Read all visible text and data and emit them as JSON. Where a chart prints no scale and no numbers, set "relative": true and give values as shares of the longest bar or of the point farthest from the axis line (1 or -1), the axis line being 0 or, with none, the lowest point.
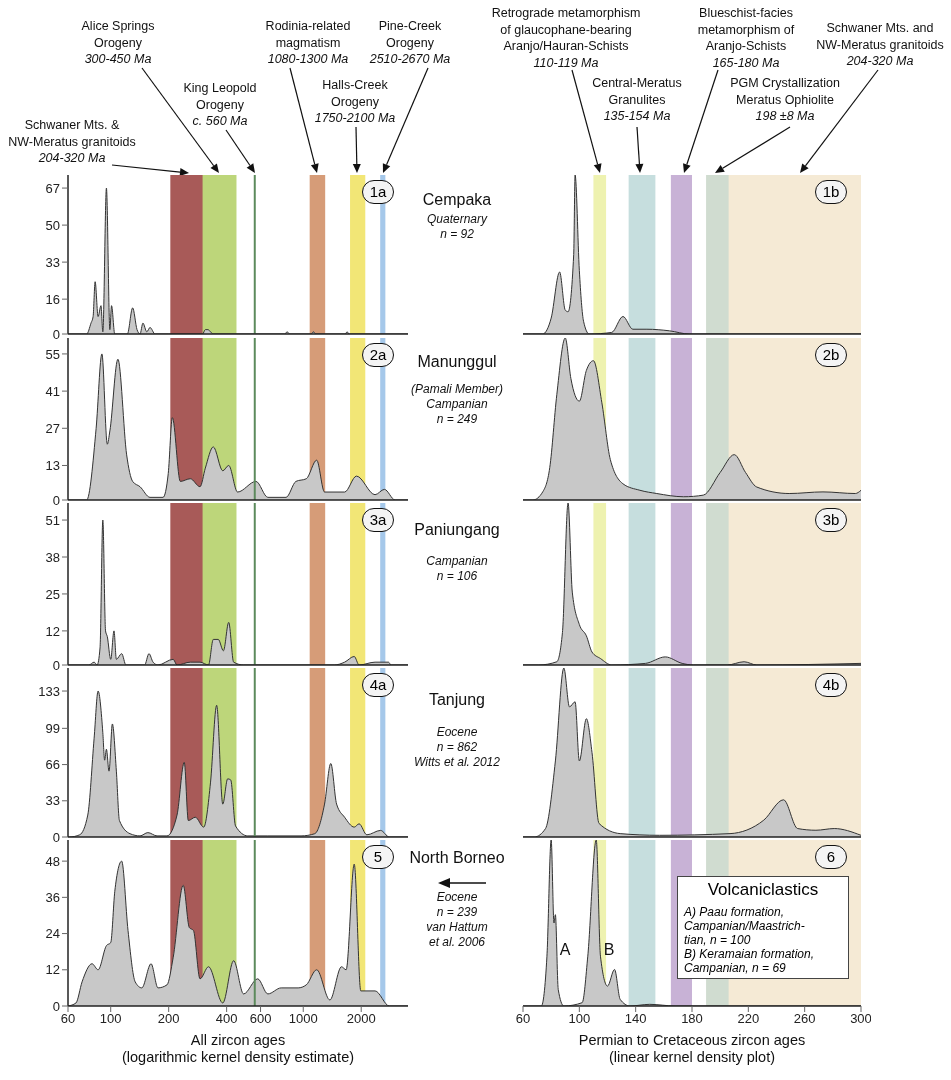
{
  "chart_data": [
    {
      "type": "area",
      "annotations": [
        "1a",
        "Schwaner Mts. &\nNW-Meratus granitoids\n204-320 Ma",
        "Alice Springs\nOrogeny\n300-450 Ma",
        "King Leopold\nOrogeny\nc. 560 Ma",
        "Rodinia-related\nmagmatism\n1080-1300 Ma",
        "Halls-Creek\nOrogeny\n1750-2100 Ma",
        "Pine-Creek\nOrogeny\n2510-2670 Ma"
      ],
      "log": "x",
      "tick_labels": "y",
      "color": "#c8c8c8",
      "xlim": [
        60,
        3500
      ],
      "xticks": [
        60,
        100,
        200,
        400,
        600,
        1000,
        2000
      ],
      "ylim": [
        0,
        73
      ],
      "yticks": [
        0,
        16,
        33,
        50,
        67
      ],
      "x": [
        60,
        75,
        79,
        81,
        83,
        86,
        89,
        91,
        95,
        99,
        101,
        105,
        122,
        130,
        137,
        142,
        147,
        154,
        160,
        170,
        200,
        300,
        310,
        320,
        330,
        340,
        800,
        825,
        850,
        1100,
        1130,
        1160,
        1650,
        1690,
        1730,
        3500
      ],
      "values": [
        0,
        0,
        5,
        8,
        24,
        8,
        13,
        1,
        67,
        2,
        13,
        0,
        0,
        12,
        2,
        0,
        5,
        1,
        3,
        0,
        0,
        0,
        2,
        2,
        1,
        0,
        0,
        1,
        0,
        0,
        1,
        0,
        0,
        1,
        0,
        0
      ],
      "bands": [
        {
          "axis": "x",
          "from": 204,
          "to": 320,
          "color": "#a85a58"
        },
        {
          "axis": "x",
          "from": 300,
          "to": 450,
          "color": "#bdd67a"
        },
        {
          "axis": "x",
          "from": 1080,
          "to": 1300,
          "color": "#d69c78"
        },
        {
          "axis": "x",
          "from": 1750,
          "to": 2100,
          "color": "#f2e676"
        },
        {
          "axis": "x",
          "from": 2510,
          "to": 2670,
          "color": "#a5c8ea"
        }
      ],
      "ref_lines": [
        {
          "axis": "x",
          "value": 560,
          "color": "#5c8a5c"
        }
      ]
    },
    {
      "type": "area",
      "title": "Cempaka",
      "subtitle": "Quaternary\nn = 92",
      "relative": true,
      "annotations": [
        "1b",
        "Retrograde metamorphism\nof glaucophane-bearing\nAranjo/Hauran-Schists\n110-119 Ma",
        "Central-Meratus\nGranulites\n135-154 Ma",
        "Blueschist-facies\nmetamorphism of\nAranjo-Schists\n165-180 Ma",
        "PGM Crystallization\nMeratus Ophiolite\n198 ±8 Ma",
        "Schwaner Mts. and\nNW-Meratus granitoids\n204-320 Ma"
      ],
      "tick_labels": false,
      "color": "#c8c8c8",
      "xlim": [
        60,
        300
      ],
      "xticks": [
        60,
        100,
        140,
        180,
        220,
        260,
        300
      ],
      "x": [
        60,
        74,
        80,
        86,
        90,
        92,
        96,
        97,
        100,
        103,
        107,
        123,
        131,
        138,
        148,
        164,
        178,
        300
      ],
      "values": [
        0,
        0,
        0.1,
        0.39,
        0.15,
        0.14,
        0.5,
        1,
        0.4,
        0.08,
        0,
        0.01,
        0.11,
        0.03,
        0.03,
        0.02,
        0,
        0
      ],
      "bands": [
        {
          "axis": "x",
          "from": 110,
          "to": 119,
          "color": "#eef2b0"
        },
        {
          "axis": "x",
          "from": 135,
          "to": 154,
          "color": "#c6dede"
        },
        {
          "axis": "x",
          "from": 165,
          "to": 180,
          "color": "#c8b2d6"
        },
        {
          "axis": "x",
          "from": 204,
          "to": 320,
          "color": "#f5ead5"
        },
        {
          "axis": "x",
          "from": 190,
          "to": 206,
          "color": "#d0dcd0"
        }
      ]
    },
    {
      "type": "area",
      "annotations": [
        "2a"
      ],
      "log": "x",
      "tick_labels": "y",
      "color": "#c8c8c8",
      "xlim": [
        60,
        3500
      ],
      "xticks": [
        60,
        100,
        200,
        400,
        600,
        1000,
        2000
      ],
      "ylim": [
        0,
        61
      ],
      "yticks": [
        0,
        13,
        27,
        41,
        55
      ],
      "x": [
        60,
        75,
        84,
        90,
        96,
        99,
        109,
        121,
        130,
        142,
        160,
        187,
        199,
        209,
        230,
        259,
        291,
        310,
        341,
        382,
        410,
        456,
        568,
        655,
        814,
        916,
        1037,
        1174,
        1290,
        1640,
        1890,
        2360,
        2640,
        3000,
        3500
      ],
      "values": [
        0,
        0,
        27,
        55,
        21,
        26,
        53,
        17,
        7,
        5,
        1,
        1,
        10,
        31,
        7,
        8,
        5,
        12,
        20,
        11,
        13,
        3,
        7,
        1,
        1,
        7,
        8,
        15,
        3,
        3,
        9,
        2,
        4,
        0,
        0
      ],
      "bands": [
        {
          "axis": "x",
          "from": 204,
          "to": 320,
          "color": "#a85a58"
        },
        {
          "axis": "x",
          "from": 300,
          "to": 450,
          "color": "#bdd67a"
        },
        {
          "axis": "x",
          "from": 1080,
          "to": 1300,
          "color": "#d69c78"
        },
        {
          "axis": "x",
          "from": 1750,
          "to": 2100,
          "color": "#f2e676"
        },
        {
          "axis": "x",
          "from": 2510,
          "to": 2670,
          "color": "#a5c8ea"
        }
      ],
      "ref_lines": [
        {
          "axis": "x",
          "value": 560,
          "color": "#5c8a5c"
        }
      ]
    },
    {
      "type": "area",
      "title": "Manunggul",
      "subtitle": "(Pamali Member)\nCampanian\nn = 249",
      "relative": true,
      "annotations": [
        "2b"
      ],
      "tick_labels": false,
      "color": "#c8c8c8",
      "xlim": [
        60,
        300
      ],
      "xticks": [
        60,
        100,
        140,
        180,
        220,
        260,
        300
      ],
      "x": [
        60,
        67,
        74,
        79,
        84,
        90,
        94,
        100,
        105,
        110,
        116,
        122,
        131,
        143,
        155,
        174,
        188,
        200,
        210,
        218,
        226,
        249,
        273,
        296,
        300
      ],
      "values": [
        0,
        0,
        0.05,
        0.2,
        0.65,
        1,
        0.75,
        0.61,
        0.8,
        0.86,
        0.6,
        0.25,
        0.1,
        0.06,
        0.04,
        0.02,
        0.03,
        0.17,
        0.28,
        0.17,
        0.08,
        0.04,
        0.05,
        0.04,
        0.06
      ],
      "bands": [
        {
          "axis": "x",
          "from": 110,
          "to": 119,
          "color": "#eef2b0"
        },
        {
          "axis": "x",
          "from": 135,
          "to": 154,
          "color": "#c6dede"
        },
        {
          "axis": "x",
          "from": 165,
          "to": 180,
          "color": "#c8b2d6"
        },
        {
          "axis": "x",
          "from": 204,
          "to": 320,
          "color": "#f5ead5"
        },
        {
          "axis": "x",
          "from": 190,
          "to": 206,
          "color": "#d0dcd0"
        }
      ]
    },
    {
      "type": "area",
      "annotations": [
        "3a"
      ],
      "log": "x",
      "tick_labels": "y",
      "color": "#c8c8c8",
      "xlim": [
        60,
        3500
      ],
      "xticks": [
        60,
        100,
        200,
        400,
        600,
        1000,
        2000
      ],
      "ylim": [
        0,
        57
      ],
      "yticks": [
        0,
        12,
        25,
        38,
        51
      ],
      "x": [
        60,
        77,
        82,
        85,
        88,
        91,
        94,
        96,
        100,
        104,
        107,
        114,
        120,
        150,
        158,
        166,
        176,
        211,
        221,
        259,
        291,
        322,
        341,
        362,
        385,
        410,
        435,
        490,
        1450,
        1640,
        1840,
        1950,
        2360,
        2770,
        2860,
        3500
      ],
      "values": [
        0,
        0,
        1,
        0,
        6,
        51,
        12,
        10,
        2,
        12,
        2,
        4,
        0,
        0,
        4,
        1,
        0,
        2,
        0,
        1,
        1,
        0,
        9,
        9,
        5,
        15,
        1,
        0,
        0,
        1,
        3,
        0,
        1,
        1,
        0,
        0
      ],
      "bands": [
        {
          "axis": "x",
          "from": 204,
          "to": 320,
          "color": "#a85a58"
        },
        {
          "axis": "x",
          "from": 300,
          "to": 450,
          "color": "#bdd67a"
        },
        {
          "axis": "x",
          "from": 1080,
          "to": 1300,
          "color": "#d69c78"
        },
        {
          "axis": "x",
          "from": 1750,
          "to": 2100,
          "color": "#f2e676"
        },
        {
          "axis": "x",
          "from": 2510,
          "to": 2670,
          "color": "#a5c8ea"
        }
      ],
      "ref_lines": [
        {
          "axis": "x",
          "value": 560,
          "color": "#5c8a5c"
        }
      ]
    },
    {
      "type": "area",
      "title": "Paniungang",
      "subtitle": "Campanian\nn = 106",
      "relative": true,
      "annotations": [
        "3b"
      ],
      "tick_labels": false,
      "color": "#c8c8c8",
      "xlim": [
        60,
        300
      ],
      "xticks": [
        60,
        100,
        140,
        180,
        220,
        260,
        300
      ],
      "x": [
        60,
        71,
        84,
        88,
        92,
        95,
        100,
        105,
        109,
        115,
        123,
        147,
        161,
        173,
        181,
        205,
        217,
        226,
        300
      ],
      "values": [
        0,
        0,
        0.02,
        0.2,
        1,
        0.45,
        0.25,
        0.18,
        0.08,
        0.04,
        0,
        0.01,
        0.05,
        0.01,
        0,
        0,
        0.02,
        0,
        0.01
      ],
      "bands": [
        {
          "axis": "x",
          "from": 110,
          "to": 119,
          "color": "#eef2b0"
        },
        {
          "axis": "x",
          "from": 135,
          "to": 154,
          "color": "#c6dede"
        },
        {
          "axis": "x",
          "from": 165,
          "to": 180,
          "color": "#c8b2d6"
        },
        {
          "axis": "x",
          "from": 204,
          "to": 320,
          "color": "#f5ead5"
        },
        {
          "axis": "x",
          "from": 190,
          "to": 206,
          "color": "#d0dcd0"
        }
      ]
    },
    {
      "type": "area",
      "annotations": [
        "4a"
      ],
      "log": "x",
      "tick_labels": "y",
      "color": "#c8c8c8",
      "xlim": [
        60,
        3500
      ],
      "xticks": [
        60,
        100,
        200,
        400,
        600,
        1000,
        2000
      ],
      "ylim": [
        0,
        154
      ],
      "yticks": [
        0,
        33,
        66,
        99,
        133
      ],
      "x": [
        60,
        61,
        69,
        76,
        82,
        86,
        91,
        93,
        95,
        98,
        102,
        107,
        111,
        126,
        142,
        156,
        174,
        196,
        221,
        241,
        253,
        275,
        304,
        330,
        355,
        382,
        405,
        420,
        445,
        515,
        655,
        974,
        1147,
        1290,
        1390,
        1490,
        1640,
        1840,
        1950,
        2140,
        2520,
        2800,
        3500
      ],
      "values": [
        0,
        0,
        2,
        20,
        90,
        133,
        95,
        70,
        80,
        60,
        103,
        60,
        15,
        3,
        1,
        4,
        1,
        1,
        20,
        68,
        15,
        18,
        9,
        50,
        120,
        30,
        53,
        52,
        10,
        1,
        1,
        1,
        3,
        30,
        67,
        30,
        18,
        9,
        12,
        2,
        6,
        0,
        0
      ],
      "bands": [
        {
          "axis": "x",
          "from": 204,
          "to": 320,
          "color": "#a85a58"
        },
        {
          "axis": "x",
          "from": 300,
          "to": 450,
          "color": "#bdd67a"
        },
        {
          "axis": "x",
          "from": 1080,
          "to": 1300,
          "color": "#d69c78"
        },
        {
          "axis": "x",
          "from": 1750,
          "to": 2100,
          "color": "#f2e676"
        },
        {
          "axis": "x",
          "from": 2510,
          "to": 2670,
          "color": "#a5c8ea"
        }
      ],
      "ref_lines": [
        {
          "axis": "x",
          "value": 560,
          "color": "#5c8a5c"
        }
      ]
    },
    {
      "type": "area",
      "title": "Tanjung",
      "subtitle": "Eocene\nn = 862\nWitts et al. 2012",
      "relative": true,
      "annotations": [
        "4b"
      ],
      "tick_labels": false,
      "color": "#c8c8c8",
      "xlim": [
        60,
        300
      ],
      "xticks": [
        60,
        100,
        140,
        180,
        220,
        260,
        300
      ],
      "x": [
        60,
        68,
        76,
        83,
        89,
        93,
        97,
        100,
        105,
        109,
        114,
        129,
        157,
        207,
        231,
        245,
        255,
        268,
        281,
        300
      ],
      "values": [
        0,
        0,
        0.05,
        0.45,
        1,
        0.77,
        0.8,
        0.45,
        0.7,
        0.5,
        0.08,
        0.02,
        0.01,
        0.02,
        0.1,
        0.22,
        0.05,
        0.04,
        0.05,
        0.01
      ],
      "bands": [
        {
          "axis": "x",
          "from": 110,
          "to": 119,
          "color": "#eef2b0"
        },
        {
          "axis": "x",
          "from": 135,
          "to": 154,
          "color": "#c6dede"
        },
        {
          "axis": "x",
          "from": 165,
          "to": 180,
          "color": "#c8b2d6"
        },
        {
          "axis": "x",
          "from": 204,
          "to": 320,
          "color": "#f5ead5"
        },
        {
          "axis": "x",
          "from": 190,
          "to": 206,
          "color": "#d0dcd0"
        }
      ]
    },
    {
      "type": "area",
      "annotations": [
        "5"
      ],
      "xlabel": "All zircon ages\n(logarithmic kernel density estimate)",
      "log": "x",
      "color": "#c8c8c8",
      "xlim": [
        60,
        3500
      ],
      "xticks": [
        60,
        100,
        200,
        400,
        600,
        1000,
        2000
      ],
      "ylim": [
        0,
        55
      ],
      "yticks": [
        0,
        12,
        24,
        36,
        48
      ],
      "x": [
        60,
        66,
        71,
        80,
        86,
        95,
        100,
        105,
        114,
        123,
        134,
        145,
        162,
        176,
        196,
        211,
        238,
        256,
        269,
        291,
        322,
        382,
        435,
        490,
        580,
        655,
        768,
        941,
        1037,
        1174,
        1375,
        1580,
        1670,
        1840,
        1990,
        2360,
        2800,
        3500
      ],
      "values": [
        0,
        1,
        8,
        14,
        12,
        20,
        21,
        38,
        48,
        25,
        8,
        6,
        14,
        6,
        7,
        16,
        40,
        26,
        25,
        9,
        13,
        1,
        15,
        4,
        9,
        4,
        6,
        6,
        7,
        12,
        2,
        13,
        12,
        47,
        5,
        5,
        0,
        0
      ],
      "bands": [
        {
          "axis": "x",
          "from": 204,
          "to": 320,
          "color": "#a85a58"
        },
        {
          "axis": "x",
          "from": 300,
          "to": 450,
          "color": "#bdd67a"
        },
        {
          "axis": "x",
          "from": 1080,
          "to": 1300,
          "color": "#d69c78"
        },
        {
          "axis": "x",
          "from": 1750,
          "to": 2100,
          "color": "#f2e676"
        },
        {
          "axis": "x",
          "from": 2510,
          "to": 2670,
          "color": "#a5c8ea"
        }
      ],
      "ref_lines": [
        {
          "axis": "x",
          "value": 560,
          "color": "#5c8a5c"
        }
      ]
    },
    {
      "type": "area",
      "title": "North Borneo",
      "subtitle": "Eocene\nn = 239\nvan Hattum\net al. 2006",
      "relative": true,
      "annotations": [
        "6",
        "A",
        "B",
        "Volcaniclastics",
        "A) Paau formation,\nCampanian/Maastrich-\ntian, n = 100",
        "B) Keramaian formation,\nCampanian, n = 69"
      ],
      "tick_labels": "x",
      "xlabel": "Permian to Cretaceous zircon ages\n(linear kernel density plot)",
      "color": "#c8c8c8",
      "xlim": [
        60,
        300
      ],
      "xticks": [
        60,
        100,
        140,
        180,
        220,
        260,
        300
      ],
      "x": [
        60,
        73,
        77,
        80,
        82,
        83,
        85,
        89,
        102,
        106,
        112,
        115,
        120,
        125,
        129,
        136,
        150,
        168,
        300
      ],
      "values": [
        0,
        0,
        0.3,
        1,
        0.5,
        0.55,
        0.1,
        0,
        0.02,
        0.3,
        1,
        0.3,
        0.12,
        0.22,
        0.04,
        0,
        0.01,
        0,
        0
      ],
      "bands": [
        {
          "axis": "x",
          "from": 110,
          "to": 119,
          "color": "#eef2b0"
        },
        {
          "axis": "x",
          "from": 135,
          "to": 154,
          "color": "#c6dede"
        },
        {
          "axis": "x",
          "from": 165,
          "to": 180,
          "color": "#c8b2d6"
        },
        {
          "axis": "x",
          "from": 204,
          "to": 320,
          "color": "#f5ead5"
        },
        {
          "axis": "x",
          "from": 190,
          "to": 206,
          "color": "#d0dcd0"
        }
      ]
    }
  ]
}
